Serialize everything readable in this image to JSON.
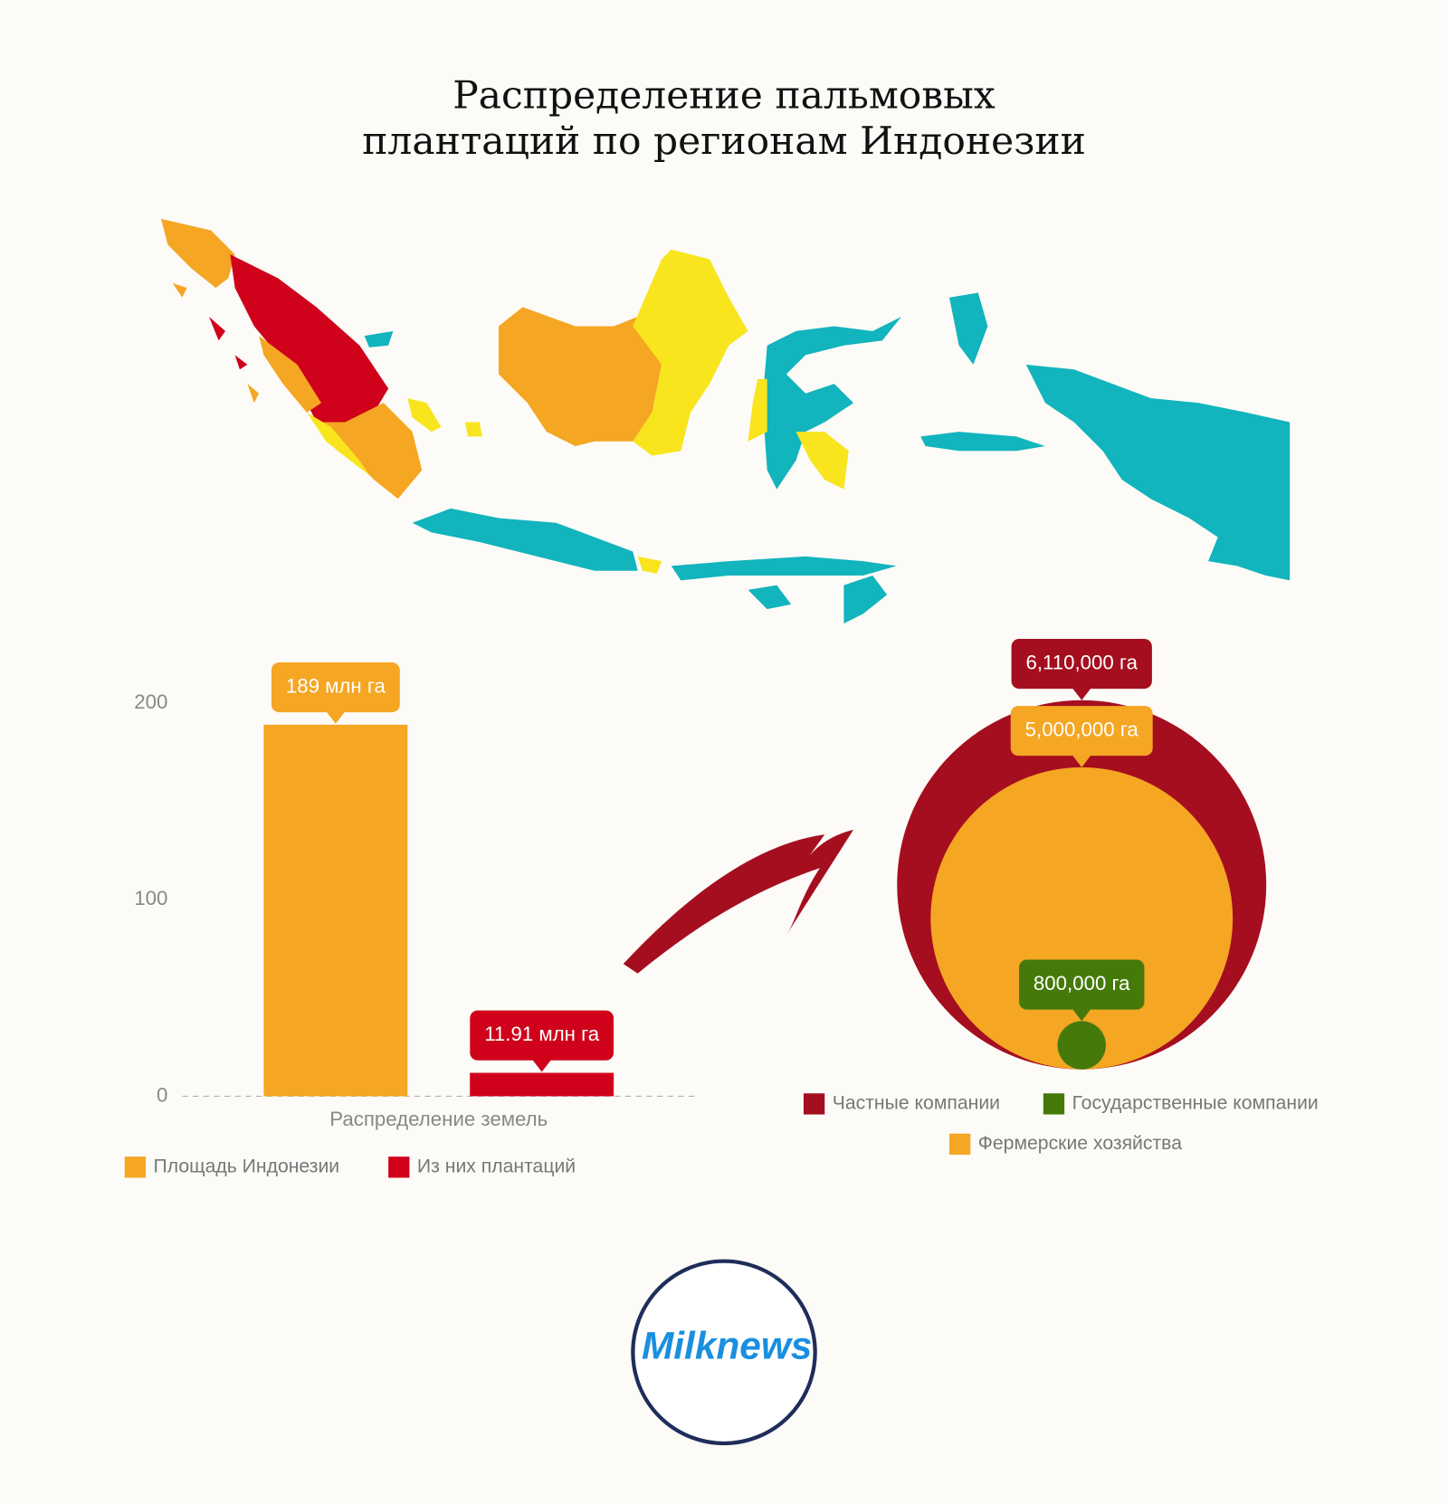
{
  "header": {
    "title_lines": [
      "Распределение пальмовых",
      "плантаций по регионам Индонезии"
    ]
  },
  "logo": {
    "text": "Milknews"
  },
  "chart_data": [
    {
      "type": "bar",
      "categories": [
        "Распределение земель"
      ],
      "series": [
        {
          "name": "Площадь Индонезии",
          "color": "#f5a623",
          "values": [
            189
          ],
          "value_labels": [
            "189 млн га"
          ]
        },
        {
          "name": "Из них плантаций",
          "color": "#d0021b",
          "values": [
            11.91
          ],
          "value_labels": [
            "11.91 млн га"
          ]
        }
      ],
      "ylim": [
        0,
        220
      ],
      "yticks": [
        0,
        100,
        200
      ]
    },
    {
      "type": "bubble",
      "series": [
        {
          "name": "Частные компании",
          "color": "#a50e1f",
          "values": [
            6110000
          ],
          "value_labels": [
            "6,110,000 га"
          ]
        },
        {
          "name": "Государственные компании",
          "color": "#457a0a",
          "values": [
            800000
          ],
          "value_labels": [
            "800,000 га"
          ]
        },
        {
          "name": "Фермерские хозяйства",
          "color": "#f5a623",
          "values": [
            5000000
          ],
          "value_labels": [
            "5,000,000 га"
          ]
        }
      ]
    }
  ]
}
